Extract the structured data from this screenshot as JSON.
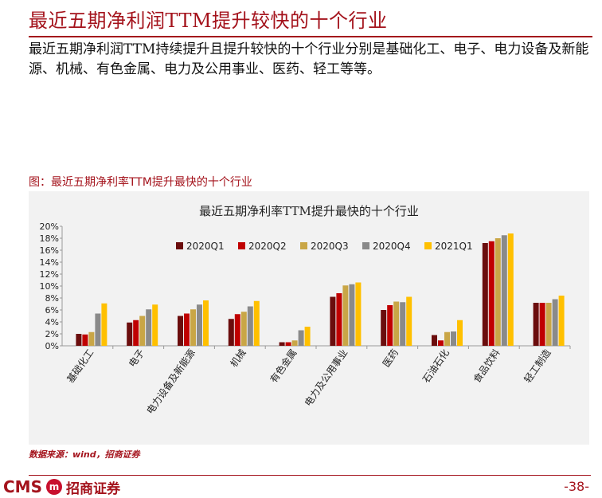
{
  "slide": {
    "title": "最近五期净利润TTM提升较快的十个行业",
    "summary": "最近五期净利润TTM持续提升且提升较快的十个行业分别是基础化工、电子、电力设备及新能源、机械、有色金属、电力及公用事业、医药、轻工等等。",
    "figure_caption": "图：最近五期净利率TTM提升最快的十个行业",
    "source": "数据来源：wind，招商证券",
    "logo_text": "CMS",
    "logo_emblem": "m",
    "logo_name": "招商证券",
    "page_number": "-38-"
  },
  "colors": {
    "accent": "#a4131c",
    "panel_bg": "#f2f2f2",
    "series": [
      "#6b0d0d",
      "#c00000",
      "#c9a646",
      "#8a8a8a",
      "#ffc000"
    ]
  },
  "chart_data": {
    "type": "bar",
    "title": "最近五期净利率TTM提升最快的十个行业",
    "categories": [
      "基础化工",
      "电子",
      "电力设备及新能源",
      "机械",
      "有色金属",
      "电力及公用事业",
      "医药",
      "石油石化",
      "食品饮料",
      "轻工制造"
    ],
    "series": [
      {
        "name": "2020Q1",
        "values": [
          2.0,
          3.9,
          5.0,
          4.5,
          0.6,
          8.2,
          6.0,
          1.8,
          17.2,
          7.2
        ]
      },
      {
        "name": "2020Q2",
        "values": [
          1.9,
          4.3,
          5.4,
          5.3,
          0.6,
          8.8,
          6.8,
          0.9,
          17.5,
          7.2
        ]
      },
      {
        "name": "2020Q3",
        "values": [
          2.3,
          5.0,
          6.1,
          5.7,
          0.9,
          10.1,
          7.4,
          2.3,
          18.0,
          7.2
        ]
      },
      {
        "name": "2020Q4",
        "values": [
          5.4,
          6.1,
          6.9,
          6.6,
          2.6,
          10.3,
          7.3,
          2.4,
          18.5,
          7.8
        ]
      },
      {
        "name": "2021Q1",
        "values": [
          7.1,
          6.9,
          7.6,
          7.5,
          3.2,
          10.6,
          8.2,
          4.3,
          18.8,
          8.4
        ]
      }
    ],
    "y_ticks": [
      "0%",
      "2%",
      "4%",
      "6%",
      "8%",
      "10%",
      "12%",
      "14%",
      "16%",
      "18%",
      "20%"
    ],
    "ylim": [
      0,
      20
    ],
    "xlabel": "",
    "ylabel": "",
    "legend_position": "top",
    "grid": false
  }
}
